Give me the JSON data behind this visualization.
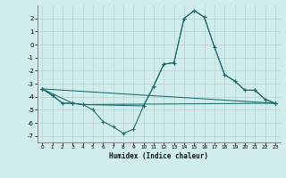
{
  "xlabel": "Humidex (Indice chaleur)",
  "xlim": [
    -0.5,
    23.5
  ],
  "ylim": [
    -7.5,
    3.0
  ],
  "yticks": [
    2,
    1,
    0,
    -1,
    -2,
    -3,
    -4,
    -5,
    -6,
    -7
  ],
  "xticks": [
    0,
    1,
    2,
    3,
    4,
    5,
    6,
    7,
    8,
    9,
    10,
    11,
    12,
    13,
    14,
    15,
    16,
    17,
    18,
    19,
    20,
    21,
    22,
    23
  ],
  "bg_color": "#d0ecec",
  "grid_color": "#c0d4d4",
  "line_color": "#1a6b6b",
  "curves": [
    {
      "x": [
        0,
        1,
        2,
        3,
        4,
        5,
        6,
        7,
        8,
        9,
        10,
        11,
        12,
        13,
        14,
        15,
        16,
        17,
        18,
        19,
        20,
        21,
        22,
        23
      ],
      "y": [
        -3.4,
        -3.9,
        -4.5,
        -4.5,
        -4.6,
        -5.0,
        -5.9,
        -6.3,
        -6.8,
        -6.5,
        -4.7,
        -3.2,
        -1.5,
        -1.4,
        2.0,
        2.6,
        2.1,
        -0.2,
        -2.3,
        -2.8,
        -3.5,
        -3.5,
        -4.2,
        -4.5
      ]
    },
    {
      "x": [
        0,
        23
      ],
      "y": [
        -3.4,
        -4.5
      ]
    },
    {
      "x": [
        0,
        1,
        2,
        3,
        4,
        10,
        11,
        12,
        13,
        14,
        15,
        16,
        17,
        18,
        19,
        20,
        21,
        22,
        23
      ],
      "y": [
        -3.4,
        -3.9,
        -4.5,
        -4.5,
        -4.6,
        -4.7,
        -3.2,
        -1.5,
        -1.4,
        2.0,
        2.6,
        2.1,
        -0.2,
        -2.3,
        -2.8,
        -3.5,
        -3.5,
        -4.2,
        -4.5
      ]
    },
    {
      "x": [
        0,
        3,
        4,
        23
      ],
      "y": [
        -3.4,
        -4.5,
        -4.6,
        -4.5
      ]
    }
  ]
}
